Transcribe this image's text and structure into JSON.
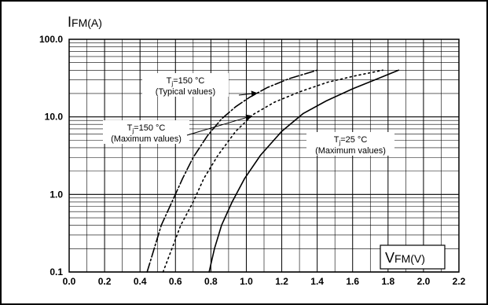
{
  "chart_data": {
    "type": "line",
    "title": "",
    "xlabel_main": "V",
    "xlabel_sub": "FM",
    "xlabel_unit": "(V)",
    "ylabel_main": "I",
    "ylabel_sub": "FM",
    "ylabel_unit": "(A)",
    "x_scale": "linear",
    "y_scale": "log",
    "xlim": [
      0.0,
      2.2
    ],
    "ylim": [
      0.1,
      100.0
    ],
    "grid": true,
    "x_ticks": [
      "0.0",
      "0.2",
      "0.4",
      "0.6",
      "0.8",
      "1.0",
      "1.2",
      "1.4",
      "1.6",
      "1.8",
      "2.0",
      "2.2"
    ],
    "y_ticks": [
      "0.1",
      "1.0",
      "10.0",
      "100.0"
    ],
    "series": [
      {
        "name": "Tj=150 °C (Typical values)",
        "style": "dashdot",
        "points": [
          [
            0.44,
            0.1
          ],
          [
            0.48,
            0.2
          ],
          [
            0.52,
            0.4
          ],
          [
            0.58,
            0.8
          ],
          [
            0.64,
            1.6
          ],
          [
            0.7,
            3.0
          ],
          [
            0.78,
            5.7
          ],
          [
            0.86,
            9.4
          ],
          [
            0.94,
            13.5
          ],
          [
            1.02,
            18
          ],
          [
            1.12,
            24
          ],
          [
            1.24,
            31
          ],
          [
            1.4,
            40
          ]
        ]
      },
      {
        "name": "Tj=150 °C (Maximum values)",
        "style": "dotted",
        "points": [
          [
            0.53,
            0.1
          ],
          [
            0.58,
            0.2
          ],
          [
            0.63,
            0.4
          ],
          [
            0.7,
            0.8
          ],
          [
            0.76,
            1.6
          ],
          [
            0.84,
            3.2
          ],
          [
            0.94,
            6.5
          ],
          [
            1.04,
            10.8
          ],
          [
            1.16,
            15.5
          ],
          [
            1.3,
            21
          ],
          [
            1.46,
            28
          ],
          [
            1.62,
            34
          ],
          [
            1.77,
            40
          ]
        ]
      },
      {
        "name": "Tj=25 °C (Maximum values)",
        "style": "solid",
        "points": [
          [
            0.79,
            0.1
          ],
          [
            0.82,
            0.2
          ],
          [
            0.86,
            0.4
          ],
          [
            0.92,
            0.8
          ],
          [
            0.99,
            1.6
          ],
          [
            1.08,
            3.2
          ],
          [
            1.2,
            6.5
          ],
          [
            1.32,
            11
          ],
          [
            1.45,
            16
          ],
          [
            1.6,
            23
          ],
          [
            1.74,
            31
          ],
          [
            1.86,
            40
          ]
        ]
      }
    ],
    "annotations": [
      {
        "line1_main": "T",
        "line1_sub": "j",
        "line1_rest": "=150 °C",
        "line2": "(Typical values)",
        "target": 0
      },
      {
        "line1_main": "T",
        "line1_sub": "j",
        "line1_rest": "=150 °C",
        "line2": "(Maximum values)",
        "target": 1
      },
      {
        "line1_main": "T",
        "line1_sub": "j",
        "line1_rest": "=25 °C",
        "line2": "(Maximum values)",
        "target": 2
      }
    ]
  }
}
